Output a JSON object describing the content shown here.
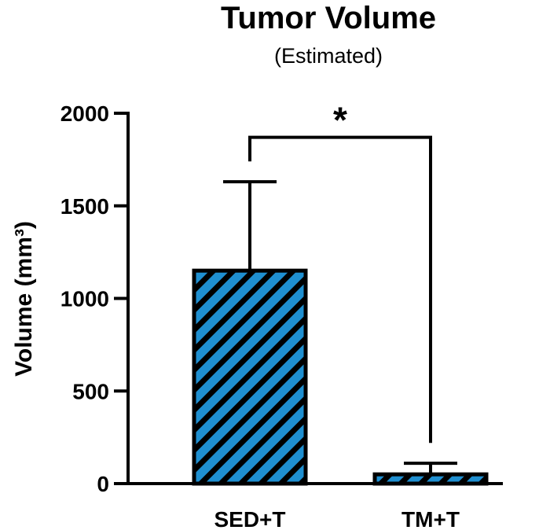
{
  "chart_data": {
    "type": "bar",
    "title": "Tumor Volume",
    "subtitle": "(Estimated)",
    "ylabel": "Volume (mm³)",
    "xlabel": "",
    "categories": [
      "SED+T",
      "TM+T"
    ],
    "values": [
      1150,
      50
    ],
    "error_upper": [
      1630,
      110
    ],
    "ylim": [
      0,
      2000
    ],
    "yticks": [
      0,
      500,
      1000,
      1500,
      2000
    ],
    "grid": false,
    "legend": "none",
    "bar_fill": "#1f8fd0",
    "bar_hatch_color": "#000000",
    "significance": {
      "between": [
        "SED+T",
        "TM+T"
      ],
      "bracket_y": 1870,
      "label": "*"
    }
  }
}
